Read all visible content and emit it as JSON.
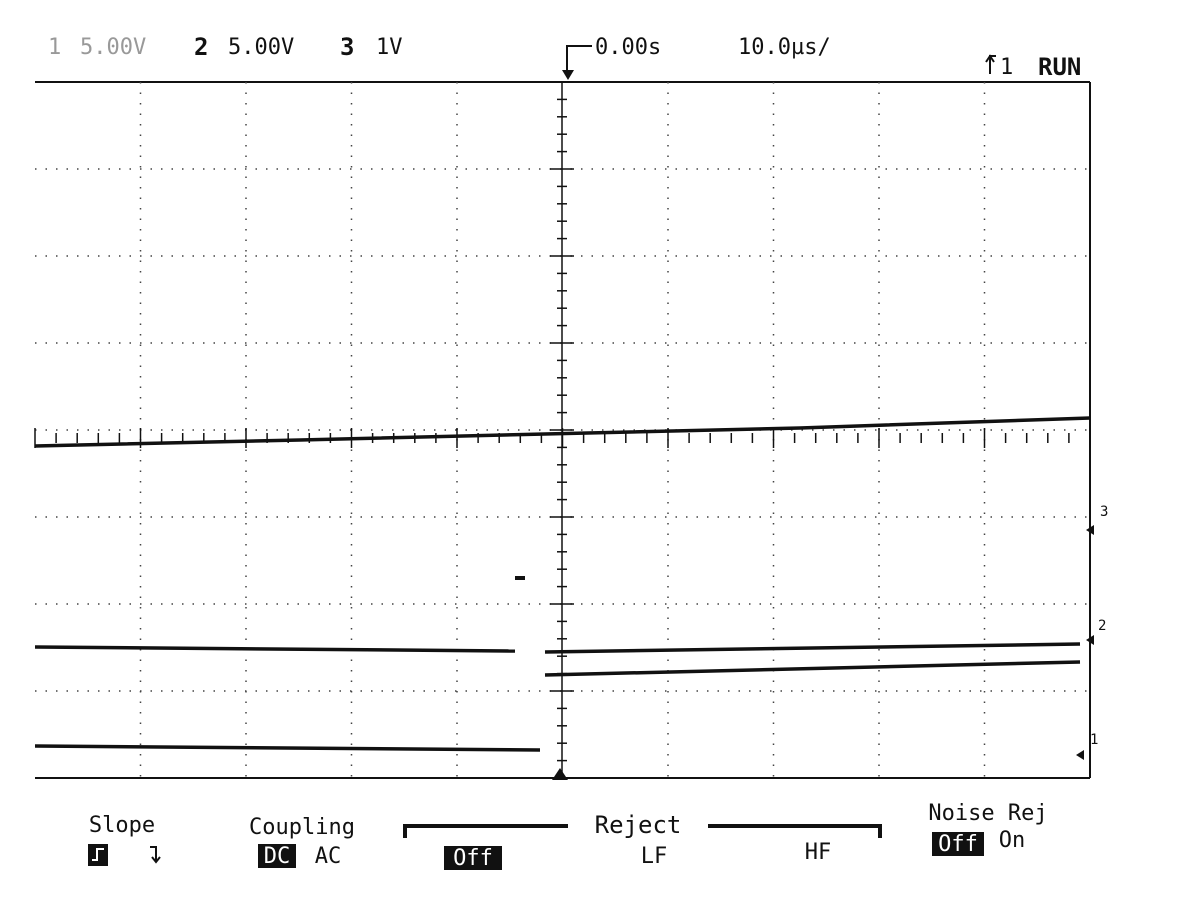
{
  "header": {
    "channels": [
      {
        "number": "1",
        "scale": "5.00V"
      },
      {
        "number": "2",
        "scale": "5.00V"
      },
      {
        "number": "3",
        "scale": "1V"
      }
    ],
    "time_offset": "0.00s",
    "time_scale": "10.0µs/",
    "trigger": "1",
    "status": "RUN"
  },
  "markers": [
    "3",
    "2",
    "1"
  ],
  "menu": {
    "slope": {
      "label": "Slope"
    },
    "coupling": {
      "label": "Coupling",
      "options": [
        "DC",
        "AC"
      ]
    },
    "reject": {
      "label": "Reject",
      "options": [
        "Off",
        "LF",
        "HF"
      ]
    },
    "noise_rej": {
      "label": "Noise Rej",
      "options": [
        "Off",
        "On"
      ]
    }
  }
}
